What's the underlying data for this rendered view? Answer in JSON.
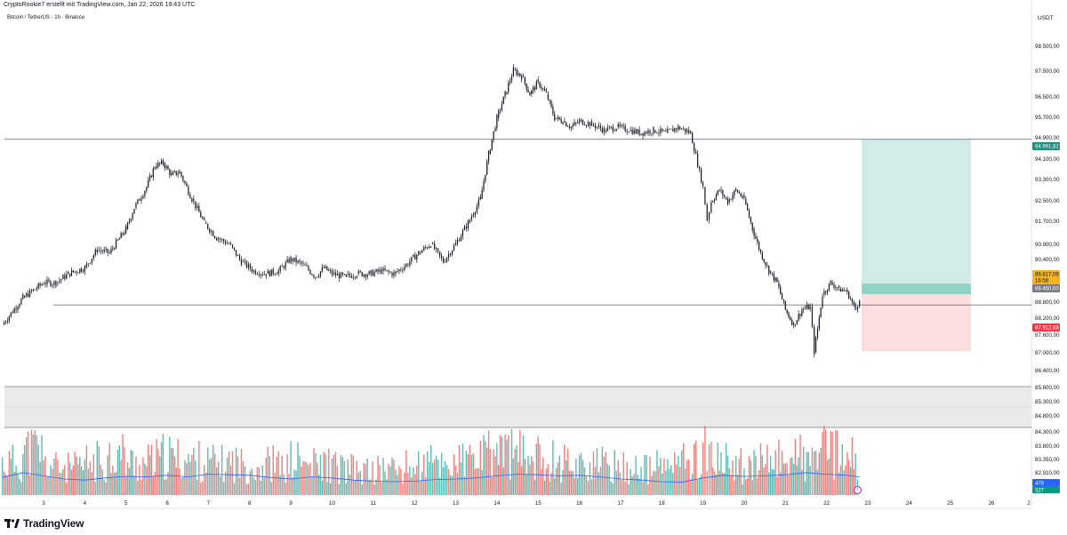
{
  "header": {
    "attribution": "CryptoRookie7 erstellt mit TradingView.com, Jan 22, 2026 19:43 UTC",
    "symbol": "Bitcoin / TetherUS · 1h · Binance"
  },
  "price_axis": {
    "currency": "USDT",
    "tick_labels": [
      "98.500,00",
      "97.500,00",
      "96.500,00",
      "95.700,00",
      "94.900,00",
      "94.100,00",
      "93.300,00",
      "92.500,00",
      "91.700,00",
      "90.900,00",
      "90.400,00",
      "88.800,00",
      "88.200,00",
      "87.600,00",
      "87.000,00",
      "86.400,00",
      "85.800,00",
      "85.300,00",
      "84.800,00",
      "84.300,00",
      "83.800,00",
      "83.350,00",
      "82.910,00",
      "82.460,00"
    ]
  },
  "price_tags": {
    "target": "94.991,82",
    "current_price": "89.817,09",
    "countdown": "16:58",
    "support": "89.460,00",
    "stop": "87.912,68"
  },
  "volume_tags": {
    "high": "478",
    "low": "327"
  },
  "time_axis": {
    "labels": [
      "3",
      "4",
      "5",
      "6",
      "7",
      "8",
      "9",
      "10",
      "11",
      "12",
      "13",
      "14",
      "15",
      "16",
      "17",
      "18",
      "19",
      "20",
      "21",
      "22",
      "23",
      "24",
      "25",
      "26",
      "2"
    ]
  },
  "colors": {
    "up": "#26a69a",
    "down": "#ef5350",
    "candle": "#131722",
    "target_zone": "#d1ece7",
    "stop_zone": "#fcdde0",
    "entry_zone": "#8fd3c6",
    "volume_ma": "#2962ff",
    "target_tag": "#1f8f7e",
    "stop_tag": "#f23645",
    "current_tag": "#f5b31c",
    "support_tag": "#787b86"
  },
  "branding": {
    "logo_text": "TradingView",
    "logo_icon": "tradingview-logo-icon"
  },
  "chart_data": {
    "type": "candlestick",
    "title": "Bitcoin / TetherUS · 1h · Binance",
    "xlabel": "",
    "ylabel": "USDT",
    "ylim": [
      86800,
      98600
    ],
    "x_range": [
      "Jan 2",
      "Jan 26"
    ],
    "grid": false,
    "horizontal_lines": [
      94991.82,
      89460.0
    ],
    "position_tool": {
      "entry": 89817.09,
      "target": 94991.82,
      "stop": 87912.68,
      "start_day": 22.85,
      "end_day": 25.5
    },
    "price_series": {
      "name": "BTCUSDT 1h",
      "x": [
        2.0,
        2.5,
        3.0,
        3.3,
        3.6,
        4.0,
        4.3,
        4.6,
        5.0,
        5.2,
        5.5,
        5.7,
        5.9,
        6.1,
        6.3,
        6.6,
        6.9,
        7.2,
        7.5,
        7.8,
        8.1,
        8.4,
        8.7,
        9.0,
        9.3,
        9.6,
        9.8,
        10.0,
        10.3,
        10.6,
        10.9,
        11.2,
        11.5,
        11.8,
        12.1,
        12.4,
        12.7,
        13.0,
        13.3,
        13.6,
        13.8,
        14.0,
        14.2,
        14.4,
        14.6,
        14.8,
        15.0,
        15.2,
        15.4,
        15.6,
        15.8,
        16.0,
        16.3,
        16.6,
        16.9,
        17.2,
        17.5,
        17.8,
        18.1,
        18.4,
        18.7,
        19.0,
        19.1,
        19.2,
        19.4,
        19.6,
        19.8,
        20.0,
        20.2,
        20.4,
        20.6,
        20.8,
        21.0,
        21.2,
        21.4,
        21.6,
        21.7,
        21.9,
        22.1,
        22.3,
        22.5,
        22.7,
        22.8
      ],
      "close": [
        88800,
        89700,
        90200,
        90200,
        90500,
        90700,
        91300,
        91200,
        92000,
        92700,
        93400,
        94100,
        94200,
        93800,
        93900,
        93000,
        92200,
        91700,
        91500,
        90900,
        90600,
        90500,
        90600,
        91000,
        90800,
        90400,
        90700,
        90500,
        90400,
        90500,
        90500,
        90600,
        90500,
        90800,
        91200,
        91500,
        90900,
        91500,
        92200,
        93000,
        94500,
        95700,
        96500,
        97300,
        97100,
        96500,
        96900,
        96500,
        95700,
        95600,
        95400,
        95600,
        95500,
        95300,
        95400,
        95300,
        95200,
        95300,
        95200,
        95400,
        95200,
        93400,
        92300,
        92900,
        93300,
        92900,
        93300,
        93000,
        92000,
        91200,
        90600,
        90200,
        89300,
        88800,
        89300,
        89400,
        87900,
        89800,
        90200,
        90000,
        89900,
        89300,
        89700
      ],
      "volume": [
        300,
        420,
        280,
        260,
        250,
        300,
        320,
        380,
        300,
        290,
        310,
        330,
        360,
        340,
        330,
        320,
        300,
        290,
        310,
        280,
        270,
        300,
        260,
        320,
        280,
        270,
        290,
        260,
        240,
        220,
        230,
        250,
        240,
        260,
        280,
        300,
        290,
        310,
        330,
        350,
        380,
        420,
        400,
        380,
        360,
        350,
        340,
        330,
        320,
        310,
        300,
        290,
        280,
        270,
        260,
        250,
        240,
        260,
        280,
        320,
        340,
        520,
        360,
        320,
        300,
        290,
        280,
        270,
        260,
        300,
        320,
        340,
        380,
        360,
        320,
        300,
        420,
        400,
        380,
        360,
        340,
        330,
        320
      ]
    },
    "volume_ma": {
      "name": "Volume MA",
      "x": [
        2.0,
        2.5,
        3.0,
        3.5,
        4.0,
        4.5,
        5.0,
        5.5,
        6.0,
        6.5,
        7.0,
        7.5,
        8.0,
        8.5,
        9.0,
        9.5,
        10.0,
        10.5,
        11.0,
        11.5,
        12.0,
        12.5,
        13.0,
        13.5,
        14.0,
        14.5,
        15.0,
        15.5,
        16.0,
        16.5,
        17.0,
        17.5,
        18.0,
        18.5,
        19.0,
        19.5,
        20.0,
        20.5,
        21.0,
        21.5,
        22.0,
        22.5,
        22.8
      ],
      "values": [
        330,
        420,
        360,
        300,
        280,
        320,
        350,
        340,
        370,
        340,
        390,
        380,
        370,
        330,
        300,
        340,
        320,
        280,
        260,
        250,
        260,
        290,
        300,
        320,
        360,
        390,
        380,
        360,
        370,
        340,
        300,
        280,
        250,
        240,
        320,
        370,
        350,
        360,
        380,
        420,
        390,
        370,
        340
      ]
    }
  }
}
